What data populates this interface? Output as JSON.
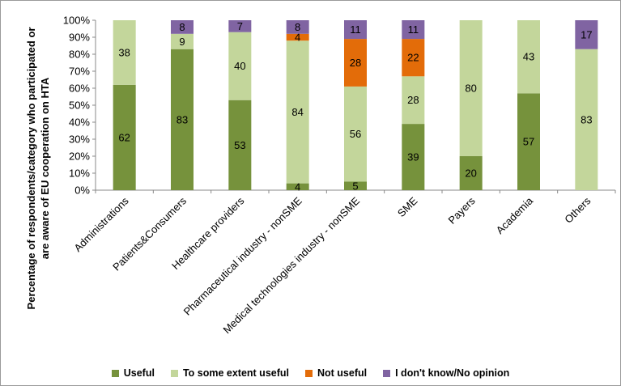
{
  "chart_data": {
    "type": "bar",
    "stacked": true,
    "percent": true,
    "ylabel_lines": [
      "Percentage of respondents/category who participated or",
      "are aware of EU cooperation on HTA"
    ],
    "xlabel": "",
    "ylim": [
      0,
      100
    ],
    "yticks": [
      "0%",
      "10%",
      "20%",
      "30%",
      "40%",
      "50%",
      "60%",
      "70%",
      "80%",
      "90%",
      "100%"
    ],
    "categories": [
      "Administrations",
      "Patients&Consumers",
      "Healthcare providers",
      "Pharmaceutical industry - nonSME",
      "Medical technologies industry - nonSME",
      "SME",
      "Payers",
      "Academia",
      "Others"
    ],
    "series": [
      {
        "name": "Useful",
        "color": "#76923c",
        "values": [
          62,
          83,
          53,
          4,
          5,
          39,
          20,
          57,
          0
        ],
        "labels": [
          "62",
          "83",
          "53",
          "4",
          "5",
          "39",
          "20",
          "57",
          ""
        ]
      },
      {
        "name": "To some extent useful",
        "color": "#c3d69b",
        "values": [
          38,
          9,
          40,
          84,
          56,
          28,
          80,
          43,
          83
        ],
        "labels": [
          "38",
          "9",
          "40",
          "84",
          "56",
          "28",
          "80",
          "43",
          "83"
        ]
      },
      {
        "name": "Not useful",
        "color": "#e36c09",
        "values": [
          0,
          0,
          0,
          4,
          28,
          22,
          0,
          0,
          0
        ],
        "labels": [
          "",
          "",
          "",
          "4",
          "28",
          "22",
          "",
          "",
          ""
        ]
      },
      {
        "name": "I don't know/No opinion",
        "color": "#8064a2",
        "values": [
          0,
          8,
          7,
          8,
          11,
          11,
          0,
          0,
          17
        ],
        "labels": [
          "",
          "8",
          "7",
          "8",
          "11",
          "11",
          "",
          "",
          "17"
        ]
      }
    ],
    "grid": false,
    "legend_position": "bottom"
  }
}
